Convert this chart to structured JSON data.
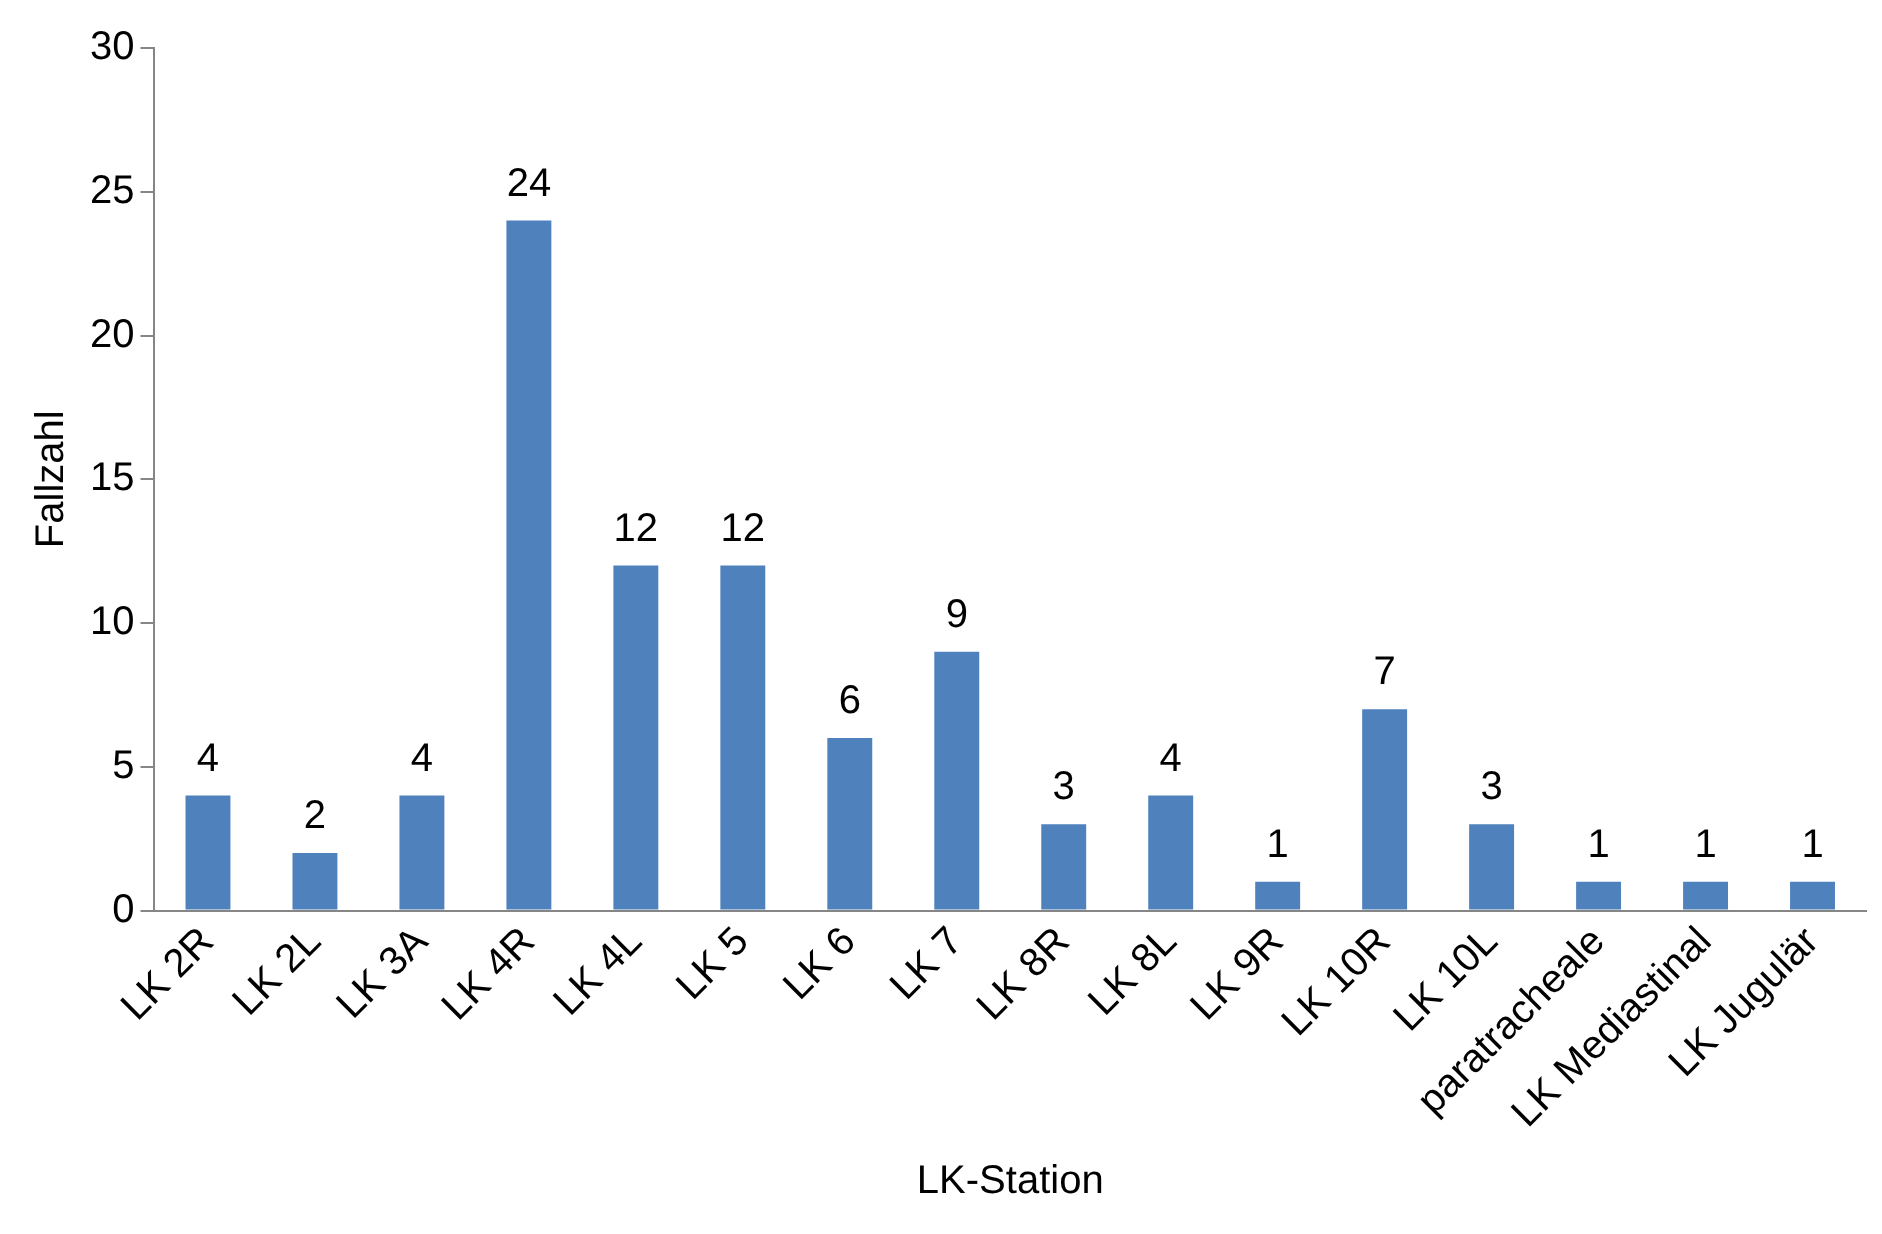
{
  "chart_data": {
    "type": "bar",
    "xlabel": "LK-Station",
    "ylabel": "Fallzahl",
    "categories": [
      "LK 2R",
      "LK 2L",
      "LK 3A",
      "LK 4R",
      "LK 4L",
      "LK 5",
      "LK 6",
      "LK 7",
      "LK 8R",
      "LK 8L",
      "LK 9R",
      "LK 10R",
      "LK 10L",
      "paratracheale",
      "LK Mediastinal",
      "LK Jugulär"
    ],
    "values": [
      4,
      2,
      4,
      24,
      12,
      12,
      6,
      9,
      3,
      4,
      1,
      7,
      3,
      1,
      1,
      1
    ],
    "color": "#4f81bd",
    "ylim": [
      0,
      30
    ],
    "yticks": [
      0,
      5,
      10,
      15,
      20,
      25,
      30
    ],
    "grid": false,
    "legend": false,
    "data_labels": true
  }
}
